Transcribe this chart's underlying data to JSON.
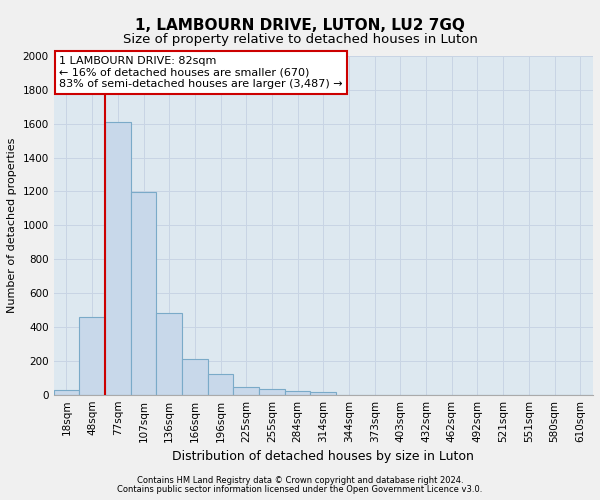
{
  "title": "1, LAMBOURN DRIVE, LUTON, LU2 7GQ",
  "subtitle": "Size of property relative to detached houses in Luton",
  "xlabel": "Distribution of detached houses by size in Luton",
  "ylabel": "Number of detached properties",
  "footnote1": "Contains HM Land Registry data © Crown copyright and database right 2024.",
  "footnote2": "Contains public sector information licensed under the Open Government Licence v3.0.",
  "bin_labels": [
    "18sqm",
    "48sqm",
    "77sqm",
    "107sqm",
    "136sqm",
    "166sqm",
    "196sqm",
    "225sqm",
    "255sqm",
    "284sqm",
    "314sqm",
    "344sqm",
    "373sqm",
    "403sqm",
    "432sqm",
    "462sqm",
    "492sqm",
    "521sqm",
    "551sqm",
    "580sqm",
    "610sqm"
  ],
  "bar_values": [
    30,
    460,
    1610,
    1195,
    480,
    210,
    120,
    45,
    35,
    22,
    15,
    0,
    0,
    0,
    0,
    0,
    0,
    0,
    0,
    0,
    0
  ],
  "bar_color": "#c8d8ea",
  "bar_edge_color": "#7aaac8",
  "property_line_label": "1 LAMBOURN DRIVE: 82sqm",
  "annotation_line1": "← 16% of detached houses are smaller (670)",
  "annotation_line2": "83% of semi-detached houses are larger (3,487) →",
  "annotation_box_color": "#ffffff",
  "annotation_box_edge_color": "#cc0000",
  "vline_color": "#cc0000",
  "vline_x_index": 2,
  "ylim": [
    0,
    2000
  ],
  "yticks": [
    0,
    200,
    400,
    600,
    800,
    1000,
    1200,
    1400,
    1600,
    1800,
    2000
  ],
  "grid_color": "#c8d4e4",
  "bg_color": "#dde8f0",
  "fig_bg_color": "#f0f0f0",
  "title_fontsize": 11,
  "subtitle_fontsize": 9.5,
  "ylabel_fontsize": 8,
  "xlabel_fontsize": 9,
  "tick_fontsize": 7.5,
  "annot_fontsize": 8
}
